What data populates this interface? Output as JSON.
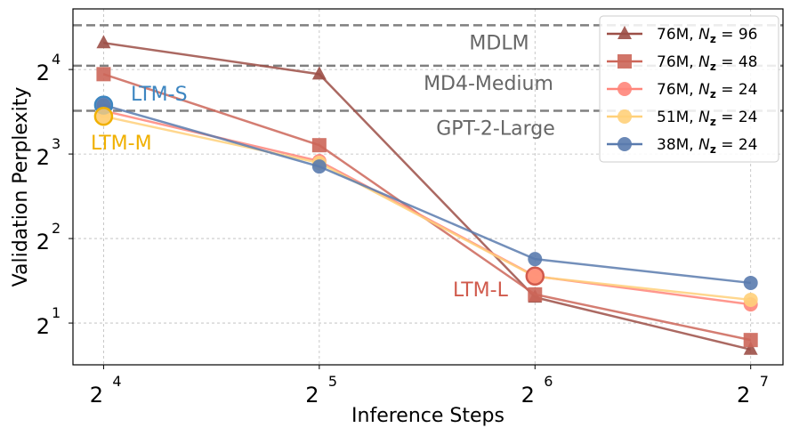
{
  "chart_data": {
    "type": "line",
    "xlabel": "Inference Steps",
    "ylabel": "Validation Perplexity",
    "x_scale": "log2",
    "y_scale": "log2",
    "x": [
      16,
      32,
      64,
      128
    ],
    "x_ticks": [
      {
        "base": "2",
        "exp": "4",
        "value": 16
      },
      {
        "base": "2",
        "exp": "5",
        "value": 32
      },
      {
        "base": "2",
        "exp": "6",
        "value": 64
      },
      {
        "base": "2",
        "exp": "7",
        "value": 128
      }
    ],
    "y_ticks": [
      {
        "base": "2",
        "exp": "1",
        "value": 2
      },
      {
        "base": "2",
        "exp": "2",
        "value": 4
      },
      {
        "base": "2",
        "exp": "3",
        "value": 8
      },
      {
        "base": "2",
        "exp": "4",
        "value": 16
      }
    ],
    "xlim": [
      14.5,
      142
    ],
    "ylim": [
      1.42,
      26.3
    ],
    "grid": true,
    "legend_position": "top-right",
    "series": [
      {
        "name": "76M, N_z = 96",
        "legend_prefix": "76M, ",
        "legend_value": "= 96",
        "marker": "triangle",
        "color": "#9c4f47",
        "values": [
          19.9,
          15.4,
          2.47,
          1.61
        ]
      },
      {
        "name": "76M, N_z = 48",
        "legend_prefix": "76M, ",
        "legend_value": "= 48",
        "marker": "square",
        "color": "#cc6659",
        "values": [
          15.4,
          8.6,
          2.53,
          1.74
        ]
      },
      {
        "name": "76M, N_z = 24",
        "legend_prefix": "76M, ",
        "legend_value": "= 24",
        "marker": "circle",
        "color": "#ff857a",
        "values": [
          11.4,
          7.55,
          2.94,
          2.33
        ]
      },
      {
        "name": "51M, N_z = 24",
        "legend_prefix": "51M, ",
        "legend_value": "= 24",
        "marker": "circle",
        "color": "#ffd07a",
        "values": [
          10.9,
          7.44,
          2.93,
          2.42
        ]
      },
      {
        "name": "38M, N_z = 24",
        "legend_prefix": "38M, ",
        "legend_value": "= 24",
        "marker": "circle",
        "color": "#5a7bae",
        "values": [
          11.95,
          7.22,
          3.38,
          2.78
        ]
      }
    ],
    "reference_lines": [
      {
        "label": "MDLM",
        "value": 23.0
      },
      {
        "label": "MD4-Medium",
        "value": 16.5
      },
      {
        "label": "GPT-2-Large",
        "value": 11.4
      }
    ],
    "annotations": [
      {
        "text": "LTM-S",
        "color": "#3d86c1",
        "series": 4,
        "x": 16
      },
      {
        "text": "LTM-M",
        "color": "#f0b000",
        "series": 3,
        "x": 16
      },
      {
        "text": "LTM-L",
        "color": "#d05a4c",
        "series": 2,
        "x": 64
      }
    ]
  }
}
